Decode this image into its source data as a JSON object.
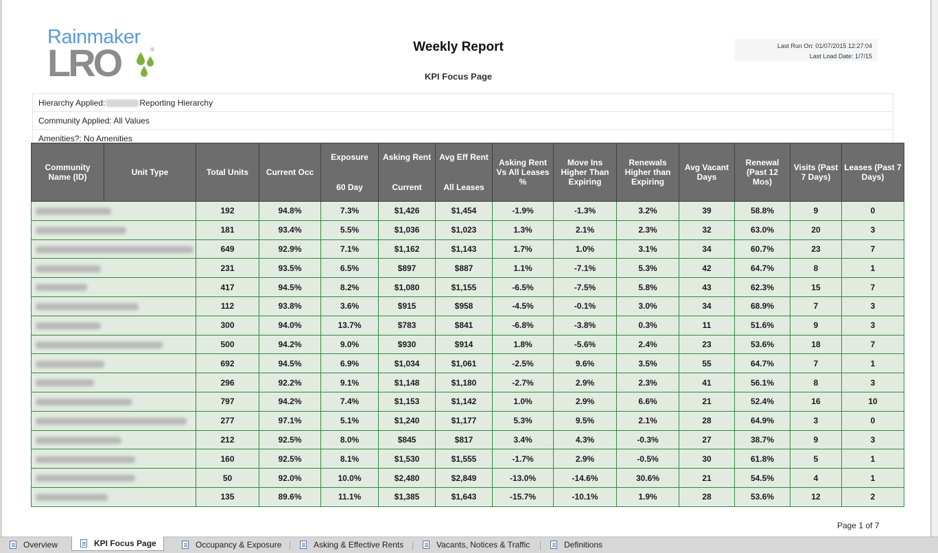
{
  "report": {
    "logo_line1": "Rainmaker",
    "logo_line2": "LRO",
    "logo_reg": "®",
    "title": "Weekly Report",
    "subtitle": "KPI Focus Page",
    "last_run": "Last Run On: 01/07/2015 12:27:04",
    "last_load": "Last Load Date: 1/7/15"
  },
  "filters": {
    "hierarchy_prefix": "Hierarchy Applied:",
    "hierarchy_suffix": "Reporting Hierarchy",
    "community": "Community Applied: All Values",
    "amenities": "Amenities?: No Amenities"
  },
  "columns": {
    "community": "Community Name (ID)",
    "unit_type": "Unit Type",
    "total_units": "Total Units",
    "current_occ": "Current Occ",
    "exposure_top": "Exposure",
    "exposure_bottom": "60 Day",
    "asking_top": "Asking Rent",
    "asking_bottom": "Current",
    "avg_eff_top": "Avg Eff Rent",
    "avg_eff_bottom": "All Leases",
    "asking_vs_all": "Asking Rent Vs All Leases %",
    "move_ins": "Move Ins Higher Than Expiring",
    "renewals": "Renewals Higher than Expiring",
    "avg_vacant": "Avg Vacant Days",
    "renewal_12": "Renewal (Past 12 Mos)",
    "visits": "Visits (Past 7 Days)",
    "leases": "Leases (Past 7 Days)"
  },
  "rows": [
    {
      "total_units": "192",
      "occ": "94.8%",
      "exposure": "7.3%",
      "asking": "$1,426",
      "eff": "$1,454",
      "vs_all": "-1.9%",
      "move_ins": "-1.3%",
      "renewals": "3.2%",
      "vacant": "39",
      "renewal12": "58.8%",
      "visits": "9",
      "leases": "0"
    },
    {
      "total_units": "181",
      "occ": "93.4%",
      "exposure": "5.5%",
      "asking": "$1,036",
      "eff": "$1,023",
      "vs_all": "1.3%",
      "move_ins": "2.1%",
      "renewals": "2.3%",
      "vacant": "32",
      "renewal12": "63.0%",
      "visits": "20",
      "leases": "3"
    },
    {
      "total_units": "649",
      "occ": "92.9%",
      "exposure": "7.1%",
      "asking": "$1,162",
      "eff": "$1,143",
      "vs_all": "1.7%",
      "move_ins": "1.0%",
      "renewals": "3.1%",
      "vacant": "34",
      "renewal12": "60.7%",
      "visits": "23",
      "leases": "7"
    },
    {
      "total_units": "231",
      "occ": "93.5%",
      "exposure": "6.5%",
      "asking": "$897",
      "eff": "$887",
      "vs_all": "1.1%",
      "move_ins": "-7.1%",
      "renewals": "5.3%",
      "vacant": "42",
      "renewal12": "64.7%",
      "visits": "8",
      "leases": "1"
    },
    {
      "total_units": "417",
      "occ": "94.5%",
      "exposure": "8.2%",
      "asking": "$1,080",
      "eff": "$1,155",
      "vs_all": "-6.5%",
      "move_ins": "-7.5%",
      "renewals": "5.8%",
      "vacant": "43",
      "renewal12": "62.3%",
      "visits": "15",
      "leases": "7"
    },
    {
      "total_units": "112",
      "occ": "93.8%",
      "exposure": "3.6%",
      "asking": "$915",
      "eff": "$958",
      "vs_all": "-4.5%",
      "move_ins": "-0.1%",
      "renewals": "3.0%",
      "vacant": "34",
      "renewal12": "68.9%",
      "visits": "7",
      "leases": "3"
    },
    {
      "total_units": "300",
      "occ": "94.0%",
      "exposure": "13.7%",
      "asking": "$783",
      "eff": "$841",
      "vs_all": "-6.8%",
      "move_ins": "-3.8%",
      "renewals": "0.3%",
      "vacant": "11",
      "renewal12": "51.6%",
      "visits": "9",
      "leases": "3"
    },
    {
      "total_units": "500",
      "occ": "94.2%",
      "exposure": "9.0%",
      "asking": "$930",
      "eff": "$914",
      "vs_all": "1.8%",
      "move_ins": "-5.6%",
      "renewals": "2.4%",
      "vacant": "23",
      "renewal12": "53.6%",
      "visits": "18",
      "leases": "7"
    },
    {
      "total_units": "692",
      "occ": "94.5%",
      "exposure": "6.9%",
      "asking": "$1,034",
      "eff": "$1,061",
      "vs_all": "-2.5%",
      "move_ins": "9.6%",
      "renewals": "3.5%",
      "vacant": "55",
      "renewal12": "64.7%",
      "visits": "7",
      "leases": "1"
    },
    {
      "total_units": "296",
      "occ": "92.2%",
      "exposure": "9.1%",
      "asking": "$1,148",
      "eff": "$1,180",
      "vs_all": "-2.7%",
      "move_ins": "2.9%",
      "renewals": "2.3%",
      "vacant": "41",
      "renewal12": "56.1%",
      "visits": "8",
      "leases": "3"
    },
    {
      "total_units": "797",
      "occ": "94.2%",
      "exposure": "7.4%",
      "asking": "$1,153",
      "eff": "$1,142",
      "vs_all": "1.0%",
      "move_ins": "2.9%",
      "renewals": "6.6%",
      "vacant": "21",
      "renewal12": "52.4%",
      "visits": "16",
      "leases": "10"
    },
    {
      "total_units": "277",
      "occ": "97.1%",
      "exposure": "5.1%",
      "asking": "$1,240",
      "eff": "$1,177",
      "vs_all": "5.3%",
      "move_ins": "9.5%",
      "renewals": "2.1%",
      "vacant": "28",
      "renewal12": "64.9%",
      "visits": "3",
      "leases": "0"
    },
    {
      "total_units": "212",
      "occ": "92.5%",
      "exposure": "8.0%",
      "asking": "$845",
      "eff": "$817",
      "vs_all": "3.4%",
      "move_ins": "4.3%",
      "renewals": "-0.3%",
      "vacant": "27",
      "renewal12": "38.7%",
      "visits": "9",
      "leases": "3"
    },
    {
      "total_units": "160",
      "occ": "92.5%",
      "exposure": "8.1%",
      "asking": "$1,530",
      "eff": "$1,555",
      "vs_all": "-1.7%",
      "move_ins": "2.9%",
      "renewals": "-0.5%",
      "vacant": "30",
      "renewal12": "61.8%",
      "visits": "5",
      "leases": "1"
    },
    {
      "total_units": "50",
      "occ": "92.0%",
      "exposure": "10.0%",
      "asking": "$2,480",
      "eff": "$2,849",
      "vs_all": "-13.0%",
      "move_ins": "-14.6%",
      "renewals": "30.6%",
      "vacant": "21",
      "renewal12": "54.5%",
      "visits": "4",
      "leases": "1"
    },
    {
      "total_units": "135",
      "occ": "89.6%",
      "exposure": "11.1%",
      "asking": "$1,385",
      "eff": "$1,643",
      "vs_all": "-15.7%",
      "move_ins": "-10.1%",
      "renewals": "1.9%",
      "vacant": "28",
      "renewal12": "53.6%",
      "visits": "12",
      "leases": "2"
    }
  ],
  "pagination": "Page 1 of 7",
  "tabs": [
    {
      "label": "Overview",
      "active": false
    },
    {
      "label": "KPI Focus Page",
      "active": true
    },
    {
      "label": "Occupancy & Exposure",
      "active": false
    },
    {
      "label": "Asking & Effective Rents",
      "active": false
    },
    {
      "label": "Vacants, Notices & Traffic",
      "active": false
    },
    {
      "label": "Definitions",
      "active": false
    }
  ],
  "colors": {
    "header_bg": "#6d6d6d",
    "row_bg": "#e2ebe0",
    "row_border": "#2c8c3c",
    "logo_blue": "#5b9bd5",
    "logo_gray": "#8c8c8c",
    "drop_green": "#7fb040"
  },
  "icons": {
    "tab": "report-page-icon",
    "logo_drops": "water-drop-icon"
  }
}
